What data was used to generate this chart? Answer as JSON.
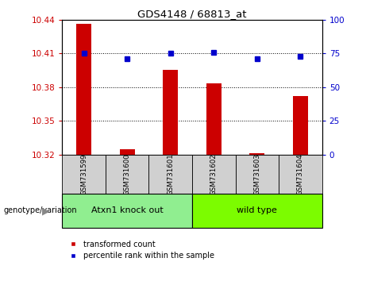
{
  "title": "GDS4148 / 68813_at",
  "samples": [
    "GSM731599",
    "GSM731600",
    "GSM731601",
    "GSM731602",
    "GSM731603",
    "GSM731604"
  ],
  "red_values": [
    10.436,
    10.325,
    10.395,
    10.383,
    10.321,
    10.372
  ],
  "blue_values": [
    75,
    71,
    75,
    76,
    71,
    73
  ],
  "ylim_left": [
    10.32,
    10.44
  ],
  "ylim_right": [
    0,
    100
  ],
  "yticks_left": [
    10.32,
    10.35,
    10.38,
    10.41,
    10.44
  ],
  "yticks_right": [
    0,
    25,
    50,
    75,
    100
  ],
  "groups": [
    {
      "label": "Atxn1 knock out",
      "indices": [
        0,
        1,
        2
      ],
      "color": "#90EE90"
    },
    {
      "label": "wild type",
      "indices": [
        3,
        4,
        5
      ],
      "color": "#7CFC00"
    }
  ],
  "genotype_label": "genotype/variation",
  "legend_red": "transformed count",
  "legend_blue": "percentile rank within the sample",
  "bar_color": "#CC0000",
  "dot_color": "#0000CC",
  "bar_width": 0.35,
  "baseline": 10.32,
  "bg_color": "#d0d0d0",
  "plot_bg": "white",
  "fig_width": 4.61,
  "fig_height": 3.54
}
